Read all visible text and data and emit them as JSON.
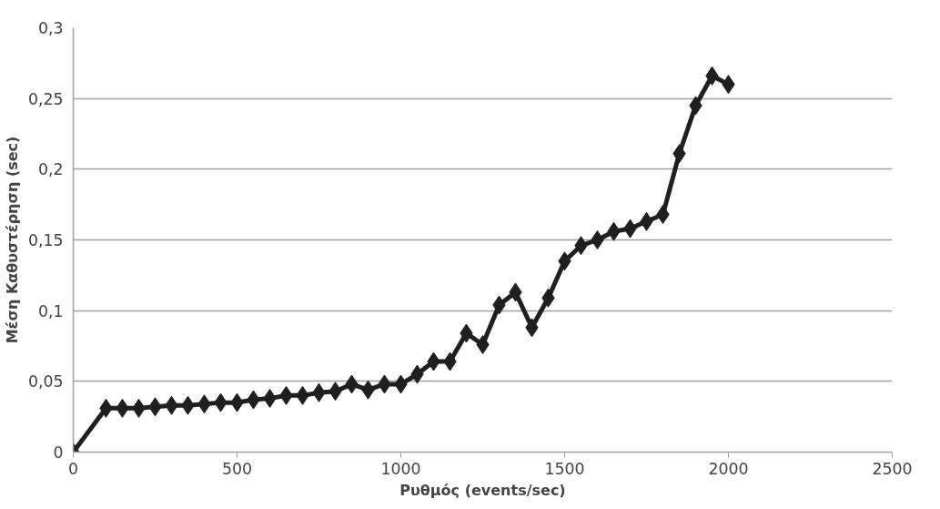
{
  "chart_data": {
    "type": "line",
    "xlabel": "Ρυθμός (events/sec)",
    "ylabel": "Μέση Καθυστέρηση (sec)",
    "x": [
      0,
      100,
      150,
      200,
      250,
      300,
      350,
      400,
      450,
      500,
      550,
      600,
      650,
      700,
      750,
      800,
      850,
      900,
      950,
      1000,
      1050,
      1100,
      1150,
      1200,
      1250,
      1300,
      1350,
      1400,
      1450,
      1500,
      1550,
      1600,
      1650,
      1700,
      1750,
      1800,
      1850,
      1900,
      1950,
      2000
    ],
    "series": [
      {
        "color": "#1f1f1f",
        "values": [
          0,
          0.031,
          0.031,
          0.031,
          0.032,
          0.033,
          0.033,
          0.034,
          0.035,
          0.035,
          0.037,
          0.038,
          0.04,
          0.04,
          0.042,
          0.043,
          0.048,
          0.044,
          0.048,
          0.048,
          0.055,
          0.064,
          0.064,
          0.084,
          0.076,
          0.104,
          0.113,
          0.088,
          0.109,
          0.135,
          0.146,
          0.15,
          0.156,
          0.158,
          0.163,
          0.168,
          0.211,
          0.245,
          0.266,
          0.26
        ]
      }
    ],
    "xlim": [
      0,
      2500
    ],
    "xticks": [
      0,
      500,
      1000,
      1500,
      2000,
      2500
    ],
    "ylim": [
      0,
      0.3
    ],
    "yticks": [
      {
        "value": 0,
        "label": "0"
      },
      {
        "value": 0.05,
        "label": "0,05"
      },
      {
        "value": 0.1,
        "label": "0,1"
      },
      {
        "value": 0.15,
        "label": "0,15"
      },
      {
        "value": 0.2,
        "label": "0,2"
      },
      {
        "value": 0.25,
        "label": "0,25"
      },
      {
        "value": 0.3,
        "label": "0,3"
      }
    ],
    "grid": "y",
    "marker": "diamond",
    "line_style": "solid"
  }
}
